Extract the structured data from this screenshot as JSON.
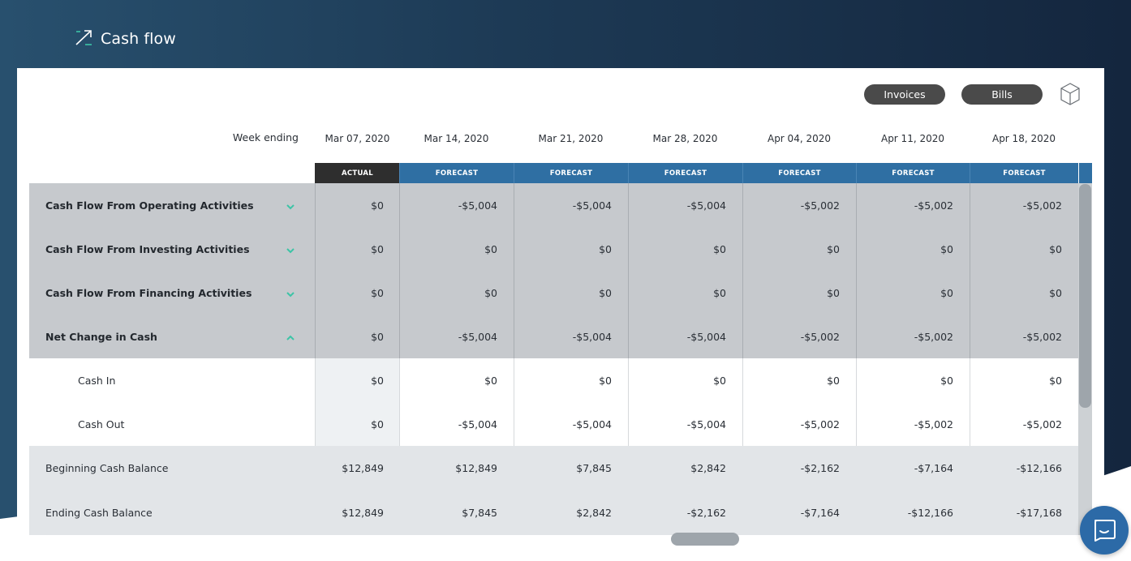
{
  "header": {
    "title": "Cash flow",
    "icon": "trend-arrow-icon"
  },
  "toolbar": {
    "invoices_label": "Invoices",
    "bills_label": "Bills",
    "cube_icon": "cube-icon"
  },
  "table": {
    "week_label": "Week ending",
    "columns": [
      {
        "date": "Mar 07, 2020",
        "status": "ACTUAL"
      },
      {
        "date": "Mar 14, 2020",
        "status": "FORECAST"
      },
      {
        "date": "Mar 21, 2020",
        "status": "FORECAST"
      },
      {
        "date": "Mar 28, 2020",
        "status": "FORECAST"
      },
      {
        "date": "Apr 04, 2020",
        "status": "FORECAST"
      },
      {
        "date": "Apr 11, 2020",
        "status": "FORECAST"
      },
      {
        "date": "Apr 18, 2020",
        "status": "FORECAST"
      }
    ],
    "rows": [
      {
        "label": "Cash Flow From Operating Activities",
        "kind": "section",
        "toggle": "chevron-down-icon",
        "values": [
          "$0",
          "-$5,004",
          "-$5,004",
          "-$5,004",
          "-$5,002",
          "-$5,002",
          "-$5,002"
        ]
      },
      {
        "label": "Cash Flow From Investing Activities",
        "kind": "section",
        "toggle": "chevron-down-icon",
        "values": [
          "$0",
          "$0",
          "$0",
          "$0",
          "$0",
          "$0",
          "$0"
        ]
      },
      {
        "label": "Cash Flow From Financing Activities",
        "kind": "section",
        "toggle": "chevron-down-icon",
        "values": [
          "$0",
          "$0",
          "$0",
          "$0",
          "$0",
          "$0",
          "$0"
        ]
      },
      {
        "label": "Net Change in Cash",
        "kind": "section",
        "toggle": "chevron-up-icon",
        "values": [
          "$0",
          "-$5,004",
          "-$5,004",
          "-$5,004",
          "-$5,002",
          "-$5,002",
          "-$5,002"
        ]
      },
      {
        "label": "Cash In",
        "kind": "sub",
        "values": [
          "$0",
          "$0",
          "$0",
          "$0",
          "$0",
          "$0",
          "$0"
        ]
      },
      {
        "label": "Cash Out",
        "kind": "sub",
        "values": [
          "$0",
          "-$5,004",
          "-$5,004",
          "-$5,004",
          "-$5,002",
          "-$5,002",
          "-$5,002"
        ]
      },
      {
        "label": "Beginning Cash Balance",
        "kind": "balance",
        "values": [
          "$12,849",
          "$12,849",
          "$7,845",
          "$2,842",
          "-$2,162",
          "-$7,164",
          "-$12,166"
        ]
      },
      {
        "label": "Ending Cash Balance",
        "kind": "balance",
        "values": [
          "$12,849",
          "$7,845",
          "$2,842",
          "-$2,162",
          "-$7,164",
          "-$12,166",
          "-$17,168"
        ]
      }
    ]
  },
  "colors": {
    "actual": "#2e2e2e",
    "forecast": "#2f6fa3",
    "chevron": "#3cc4a6",
    "section_bg": "#c6c9cd",
    "balance_bg": "#e2e5e8"
  },
  "chat": {
    "icon": "chat-bubble-icon"
  }
}
